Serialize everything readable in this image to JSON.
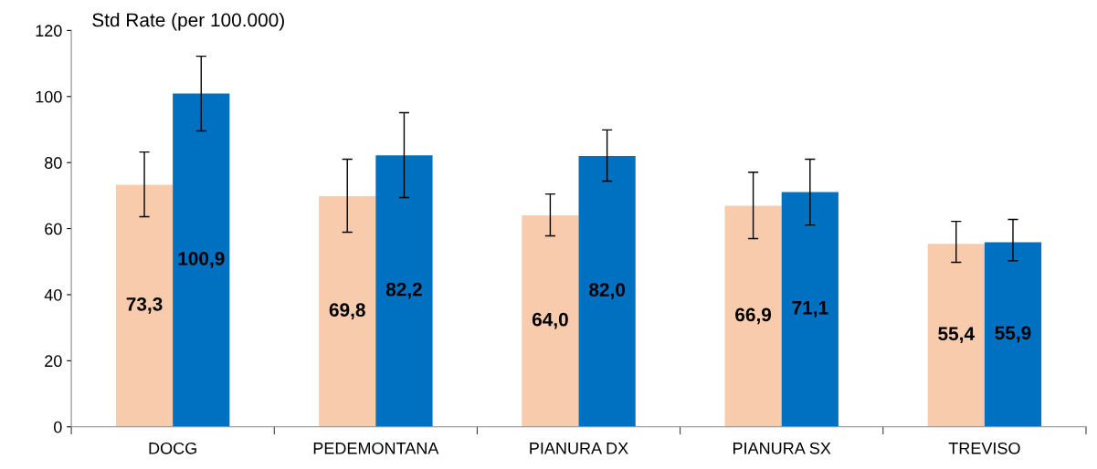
{
  "chart_data": {
    "type": "bar",
    "title": "Std Rate (per 100.000)",
    "categories": [
      "DOCG",
      "PEDEMONTANA",
      "PIANURA DX",
      "PIANURA SX",
      "TREVISO"
    ],
    "series": [
      {
        "color": "#f8cbad",
        "values": [
          73.3,
          69.8,
          64.0,
          66.9,
          55.4
        ],
        "value_labels": [
          "73,3",
          "69,8",
          "64,0",
          "66,9",
          "55,4"
        ],
        "errors": [
          [
            63.6,
            83.2
          ],
          [
            58.9,
            81.0
          ],
          [
            57.8,
            70.5
          ],
          [
            57.0,
            77.1
          ],
          [
            49.8,
            62.2
          ]
        ]
      },
      {
        "color": "#0070c0",
        "values": [
          100.9,
          82.2,
          82.0,
          71.1,
          55.9
        ],
        "value_labels": [
          "100,9",
          "82,2",
          "82,0",
          "71,1",
          "55,9"
        ],
        "errors": [
          [
            89.6,
            112.2
          ],
          [
            69.4,
            95.1
          ],
          [
            74.4,
            89.9
          ],
          [
            61.1,
            81.0
          ],
          [
            50.3,
            62.8
          ]
        ]
      }
    ],
    "ylim": [
      0,
      120
    ],
    "yticks": [
      0,
      20,
      40,
      60,
      80,
      100,
      120
    ],
    "grid": false,
    "legend": false
  }
}
